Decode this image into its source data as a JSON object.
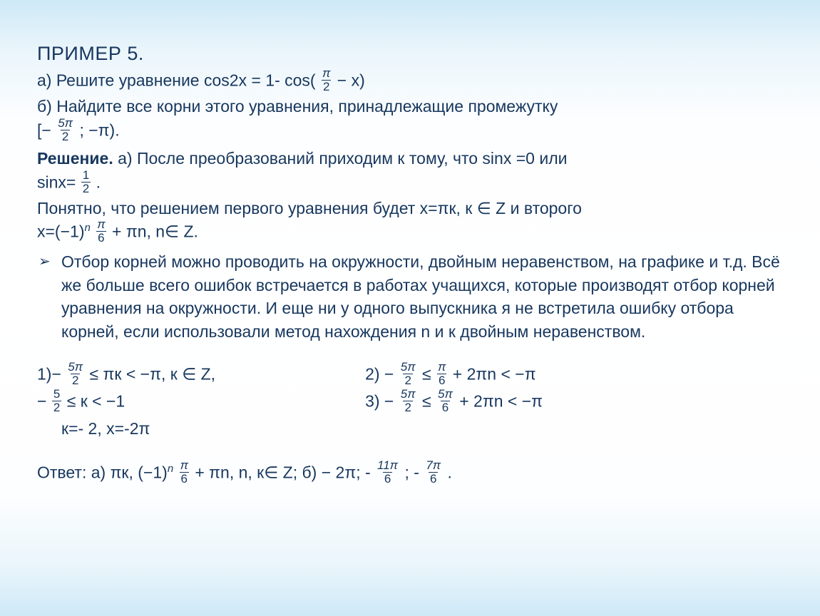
{
  "title": "ПРИМЕР 5.",
  "a_label": "а) Решите уравнение ",
  "a_eq_left": "cos2x = 1- cos(",
  "a_eq_frac_num": "π",
  "a_eq_frac_den": "2",
  "a_eq_right": " − x)",
  "b_line1": "б) Найдите все корни этого уравнения, принадлежащие промежутку",
  "b_int_open": "[−",
  "b_int_frac_num": "5π",
  "b_int_frac_den": "2",
  "b_int_close": " ; −π).",
  "sol_label": "Решение. ",
  "sol_a1": "a) После  преобразований приходим к тому, что sinx =0  или",
  "sol_a2_pre": "sinx=",
  "sol_a2_num": "1",
  "sol_a2_den": "2",
  "sol_a2_post": ".",
  "sol_b1": "Понятно, что решением первого уравнения будет x=πк, к ∈ Z и второго",
  "sol_b2_pre": "x=(−1)",
  "sol_b2_sup": "n",
  "sol_b2_num": "π",
  "sol_b2_den": "6",
  "sol_b2_post": "+ πn, n∈ Z.",
  "bullet_text": "Отбор корней можно проводить на окружности, двойным неравенством, на графике и т.д. Всё же  больше всего ошибок  встречается в работах учащихся, которые производят отбор корней уравнения на окружности. И еще ни у одного выпускника  я не встретила ошибку отбора корней, если использовали метод нахождения n и к двойным неравенством.",
  "c1_l1_pre": "1)−",
  "c1_l1_num": "5π",
  "c1_l1_den": "2",
  "c1_l1_post": " ≤ πк < −π, к ∈ Z,",
  "c1_l2_pre": "−",
  "c1_l2_num": "5",
  "c1_l2_den": "2",
  "c1_l2_post": " ≤ к < −1",
  "c1_l3": "к=- 2, x=-2π",
  "c2_l1_pre": "2)  −",
  "c2_l1_numA": "5π",
  "c2_l1_denA": "2",
  "c2_l1_mid": " ≤ ",
  "c2_l1_numB": "π",
  "c2_l1_denB": "6",
  "c2_l1_post": " + 2πn < −π",
  "c2_l2_pre": "3)  −",
  "c2_l2_numA": "5π",
  "c2_l2_denA": "2",
  "c2_l2_mid": " ≤ ",
  "c2_l2_numB": "5π",
  "c2_l2_denB": "6",
  "c2_l2_post": " + 2πn < −π",
  "ans_pre": "Ответ: а) πк, (−1)",
  "ans_sup": "n",
  "ans_numA": "π",
  "ans_denA": "6",
  "ans_mid1": "+ πn, n, к∈ Z;  б) − 2π; - ",
  "ans_numB": "11π",
  "ans_denB": "6",
  "ans_mid2": "; - ",
  "ans_numC": "7π",
  "ans_denC": "6",
  "ans_post": "."
}
